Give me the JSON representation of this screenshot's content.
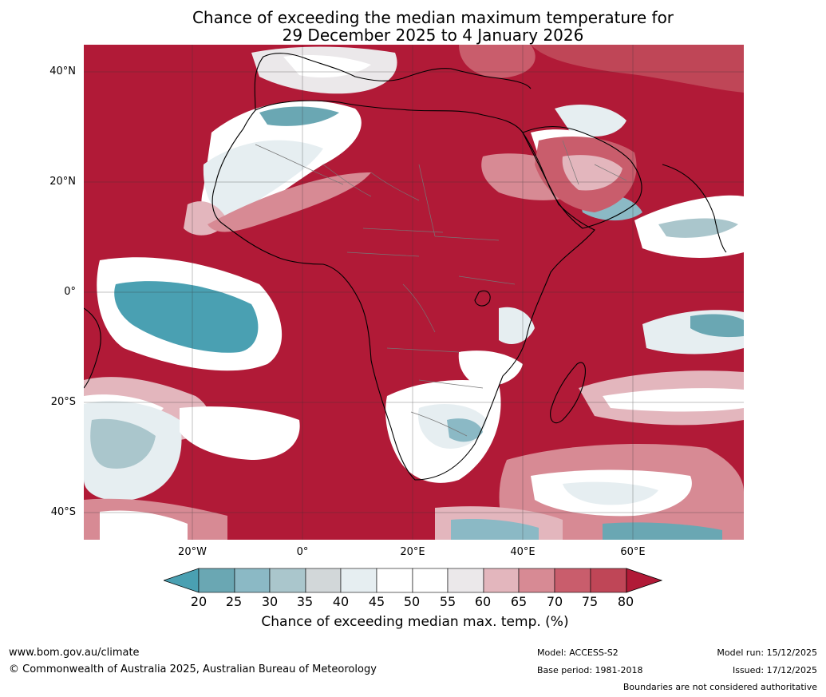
{
  "title": {
    "line1": "Chance of exceeding the median maximum temperature for",
    "line2": "29 December 2025 to 4 January 2026"
  },
  "map": {
    "lat_labels": [
      "40°N",
      "20°N",
      "0°",
      "20°S",
      "40°S"
    ],
    "lon_labels": [
      "20°W",
      "0°",
      "20°E",
      "40°E",
      "60°E"
    ],
    "extent": {
      "lon": [
        -40,
        80
      ],
      "lat": [
        -45,
        45
      ]
    }
  },
  "colorbar": {
    "ticks": [
      "20",
      "25",
      "30",
      "35",
      "40",
      "45",
      "50",
      "55",
      "60",
      "65",
      "70",
      "75",
      "80"
    ],
    "colors": {
      "below20": "#4aa0b2",
      "c20_25": "#6aa7b3",
      "c25_30": "#8bb9c5",
      "c30_35": "#aac6cc",
      "c35_40": "#d2d7d9",
      "c40_45": "#e6eef1",
      "c45_55": "#ffffff",
      "c55_60": "#ebe8ea",
      "c60_65": "#e3b6bd",
      "c65_70": "#d78a94",
      "c70_75": "#c95d6c",
      "c75_80": "#bf4657",
      "above80": "#b11a37"
    },
    "label": "Chance of exceeding median max. temp. (%)"
  },
  "footer": {
    "url": "www.bom.gov.au/climate",
    "copyright": "© Commonwealth of Australia 2025, Australian Bureau of Meteorology",
    "model": "Model: ACCESS-S2",
    "base_period": "Base period: 1981-2018",
    "model_run": "Model run: 15/12/2025",
    "issued": "Issued: 17/12/2025",
    "disclaimer": "Boundaries are not considered authoritative"
  }
}
